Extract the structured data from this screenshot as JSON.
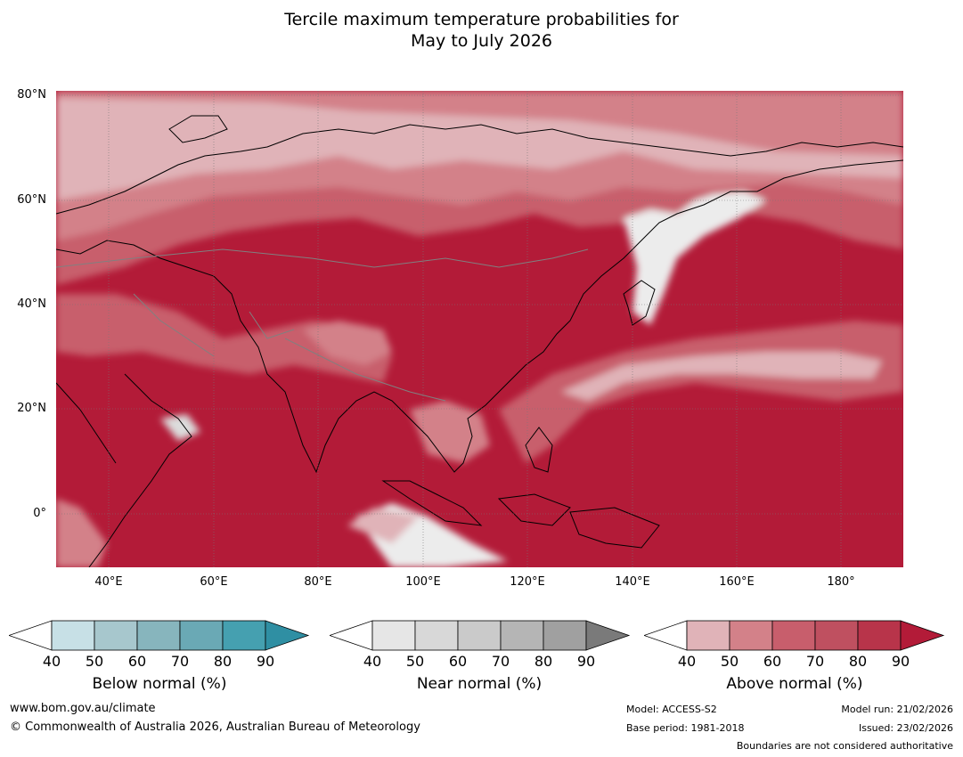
{
  "title": {
    "line1": "Tercile maximum temperature probabilities for",
    "line2": "May to July 2026"
  },
  "map": {
    "lat_labels": [
      "80°N",
      "60°N",
      "40°N",
      "20°N",
      "0°"
    ],
    "lon_labels": [
      "40°E",
      "60°E",
      "80°E",
      "100°E",
      "120°E",
      "140°E",
      "160°E",
      "180°"
    ],
    "colors": {
      "above_90": "#b31b38",
      "above_80": "#bf3249",
      "above_70": "#c85e6c",
      "above_60": "#d38189",
      "above_50": "#e0b3b8",
      "near_40": "#ececec",
      "near_50": "#dcdcdc",
      "land_line": "#000000",
      "border_line": "#808080"
    }
  },
  "colorbars": [
    {
      "label": "Below normal (%)",
      "ticks": [
        "40",
        "50",
        "60",
        "70",
        "80",
        "90"
      ],
      "colors": [
        "#ffffff",
        "#c7e0e6",
        "#a7c7cd",
        "#87b5bd",
        "#6aa9b5",
        "#45a0b0",
        "#2f8fa3"
      ]
    },
    {
      "label": "Near normal (%)",
      "ticks": [
        "40",
        "50",
        "60",
        "70",
        "80",
        "90"
      ],
      "colors": [
        "#ffffff",
        "#e6e6e6",
        "#d8d8d8",
        "#cacaca",
        "#b5b5b5",
        "#a0a0a0",
        "#7a7a7a"
      ]
    },
    {
      "label": "Above normal (%)",
      "ticks": [
        "40",
        "50",
        "60",
        "70",
        "80",
        "90"
      ],
      "colors": [
        "#ffffff",
        "#e0b3b8",
        "#d38189",
        "#c85e6c",
        "#bf5060",
        "#b8344a",
        "#b31b38"
      ]
    }
  ],
  "footer": {
    "url": "www.bom.gov.au/climate",
    "copyright": "© Commonwealth of Australia 2026, Australian Bureau of Meteorology",
    "model": "Model: ACCESS-S2",
    "base_period": "Base period: 1981-2018",
    "model_run": "Model run: 21/02/2026",
    "issued": "Issued: 23/02/2026",
    "boundaries": "Boundaries are not considered authoritative"
  }
}
